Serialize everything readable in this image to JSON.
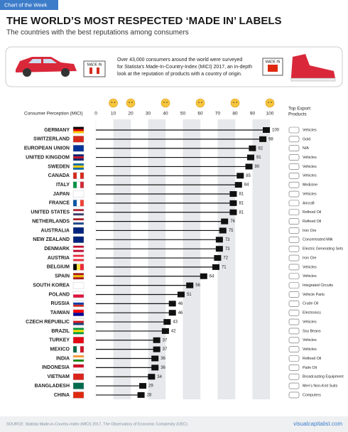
{
  "header": {
    "tag": "Chart of the Week",
    "title": "THE WORLD’S MOST RESPECTED ‘MADE IN’ LABELS",
    "subtitle": "The countries with the best reputations among consumers"
  },
  "intro": {
    "text": [
      "Over 43,000 consumers around the world were surveyed",
      "for Statista's Made-In-Country-Index (MICI) 2017, an in-depth",
      "look at the reputation of products with a country of origin."
    ],
    "made_in_left": "MADE IN",
    "made_in_right": "MADE IN"
  },
  "chart_data": {
    "type": "bar",
    "orientation": "horizontal",
    "x_label": "Consumer Perception (MICI)",
    "products_label": [
      "Top Export",
      "Products"
    ],
    "categories": [
      "GERMANY",
      "SWITZERLAND",
      "EUROPEAN UNION",
      "UNITED KINGDOM",
      "SWEDEN",
      "CANADA",
      "ITALY",
      "JAPAN",
      "FRANCE",
      "UNITED STATES",
      "NETHERLANDS",
      "AUSTRALIA",
      "NEW ZEALAND",
      "DENMARK",
      "AUSTRIA",
      "BELGIUM",
      "SPAIN",
      "SOUTH KOREA",
      "POLAND",
      "RUSSIA",
      "TAIWAN",
      "CZECH REPUBLIC",
      "BRAZIL",
      "TURKEY",
      "MEXICO",
      "INDIA",
      "INDONESIA",
      "VIETNAM",
      "BANGLADESH",
      "CHINA"
    ],
    "values": [
      100,
      98,
      92,
      91,
      90,
      85,
      84,
      81,
      81,
      81,
      76,
      75,
      73,
      73,
      72,
      71,
      64,
      56,
      51,
      46,
      46,
      43,
      42,
      37,
      37,
      36,
      36,
      34,
      29,
      28
    ],
    "products": [
      "Vehicles",
      "Gold",
      "N/A",
      "Vehicles",
      "Vehicles",
      "Vehicles",
      "Medicine",
      "Vehicles",
      "Aircraft",
      "Refined Oil",
      "Refined Oil",
      "Iron Ore",
      "Concentrated Milk",
      "Electric Generating Sets",
      "Iron Ore",
      "Vehicles",
      "Vehicles",
      "Integrated Circuits",
      "Vehicle Parts",
      "Crude Oil",
      "Electronics",
      "Vehicles",
      "Soy Beans",
      "Vehicles",
      "Vehicles",
      "Refined Oil",
      "Palm Oil",
      "Broadcasting Equipment",
      "Men's Non-Knit Suits",
      "Computers"
    ],
    "color": "#111111",
    "xlim": [
      0,
      100
    ],
    "xticks": [
      0,
      10,
      20,
      30,
      40,
      50,
      60,
      70,
      80,
      90,
      100
    ],
    "grid": true
  },
  "footer": {
    "source": "SOURCE: Statista Made-in-Country-Index (MICI) 2017, The Observatory of Economic Complexity (OEC)",
    "site": "visualcapitalist.com"
  }
}
